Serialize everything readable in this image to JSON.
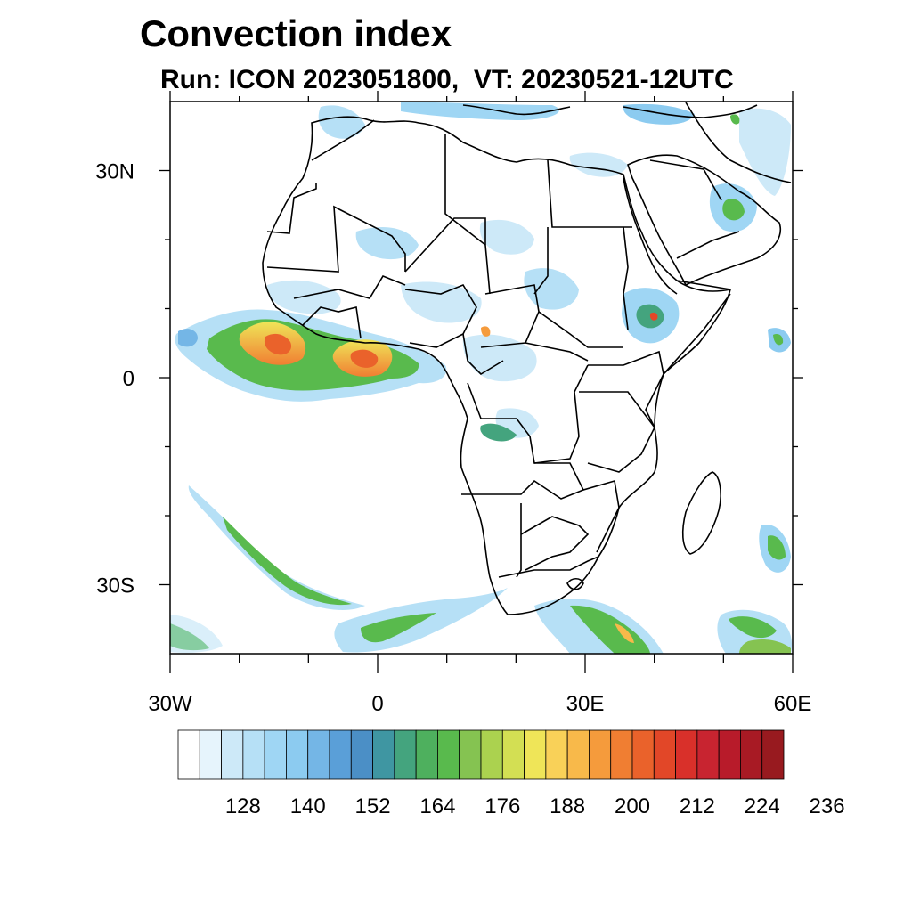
{
  "header": {
    "title": "Convection index",
    "subtitle": "Run: ICON 2023051800,  VT: 20230521-12UTC"
  },
  "map": {
    "lon_range": [
      -30,
      60
    ],
    "lat_range": [
      -40,
      40
    ],
    "lat_ticks": [
      {
        "value": 30,
        "label": "30N"
      },
      {
        "value": 0,
        "label": "0"
      },
      {
        "value": -30,
        "label": "30S"
      }
    ],
    "lon_ticks": [
      {
        "value": -30,
        "label": "30W"
      },
      {
        "value": 0,
        "label": "0"
      },
      {
        "value": 30,
        "label": "30E"
      },
      {
        "value": 60,
        "label": "60E"
      }
    ],
    "minor_lon_ticks": [
      -20,
      -10,
      10,
      20,
      40,
      50
    ],
    "minor_lat_ticks": [
      20,
      10,
      -10,
      -20
    ]
  },
  "colorbar": {
    "colors": [
      "#ffffff",
      "#e6f4fc",
      "#cde9f8",
      "#b6e0f6",
      "#9fd6f4",
      "#8ccbf0",
      "#74b6e6",
      "#5a9fd8",
      "#4b8fc6",
      "#3f96a2",
      "#44a47e",
      "#4eb05e",
      "#59ba4d",
      "#85c351",
      "#abd24f",
      "#d3df53",
      "#efe558",
      "#f9d158",
      "#f8b94a",
      "#f59b3c",
      "#f07e32",
      "#ea622b",
      "#e24728",
      "#d9302a",
      "#c82430",
      "#b81b2a",
      "#a81a24",
      "#981a1f"
    ],
    "labels": [
      "128",
      "140",
      "152",
      "164",
      "176",
      "188",
      "200",
      "212",
      "224",
      "236"
    ]
  }
}
